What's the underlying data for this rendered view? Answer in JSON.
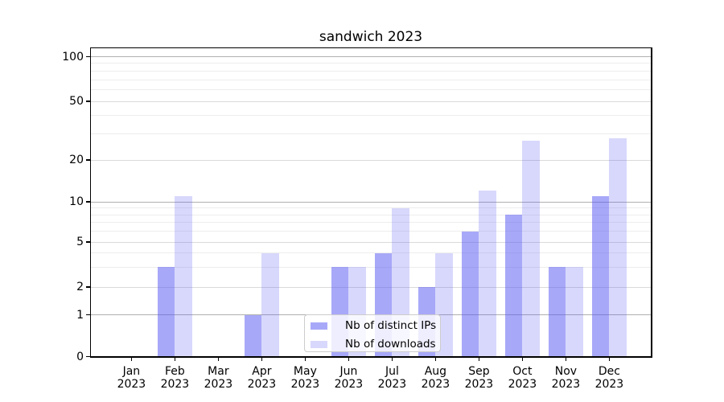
{
  "title": "sandwich 2023",
  "chart_data": {
    "type": "bar",
    "title": "sandwich 2023",
    "categories": [
      "Jan 2023",
      "Feb 2023",
      "Mar 2023",
      "Apr 2023",
      "May 2023",
      "Jun 2023",
      "Jul 2023",
      "Aug 2023",
      "Sep 2023",
      "Oct 2023",
      "Nov 2023",
      "Dec 2023"
    ],
    "series": [
      {
        "name": "Nb of distinct IPs",
        "values": [
          0,
          3,
          0,
          1,
          0,
          3,
          4,
          2,
          6,
          8,
          3,
          11
        ],
        "color": "#a9a9f7",
        "fill": "rgba(88,88,243,0.52)"
      },
      {
        "name": "Nb of downloads",
        "values": [
          0,
          11,
          0,
          4,
          0,
          3,
          9,
          4,
          12,
          27,
          3,
          28
        ],
        "color": "#d9d9fb",
        "fill": "rgba(88,88,243,0.23)"
      }
    ],
    "xlabel": "",
    "ylabel": "",
    "yscale": "symlog",
    "ylim": [
      0,
      114
    ],
    "yticks": [
      0,
      1,
      2,
      5,
      10,
      20,
      50,
      100
    ],
    "gridlines": {
      "major": [
        1,
        10,
        100
      ],
      "labeled_minor": [
        2,
        5,
        20,
        50
      ],
      "minor": [
        3,
        4,
        6,
        7,
        8,
        9,
        30,
        40,
        60,
        70,
        80,
        90
      ]
    },
    "legend": {
      "position": "inside lower center",
      "items": [
        "Nb of distinct IPs",
        "Nb of downloads"
      ]
    }
  }
}
